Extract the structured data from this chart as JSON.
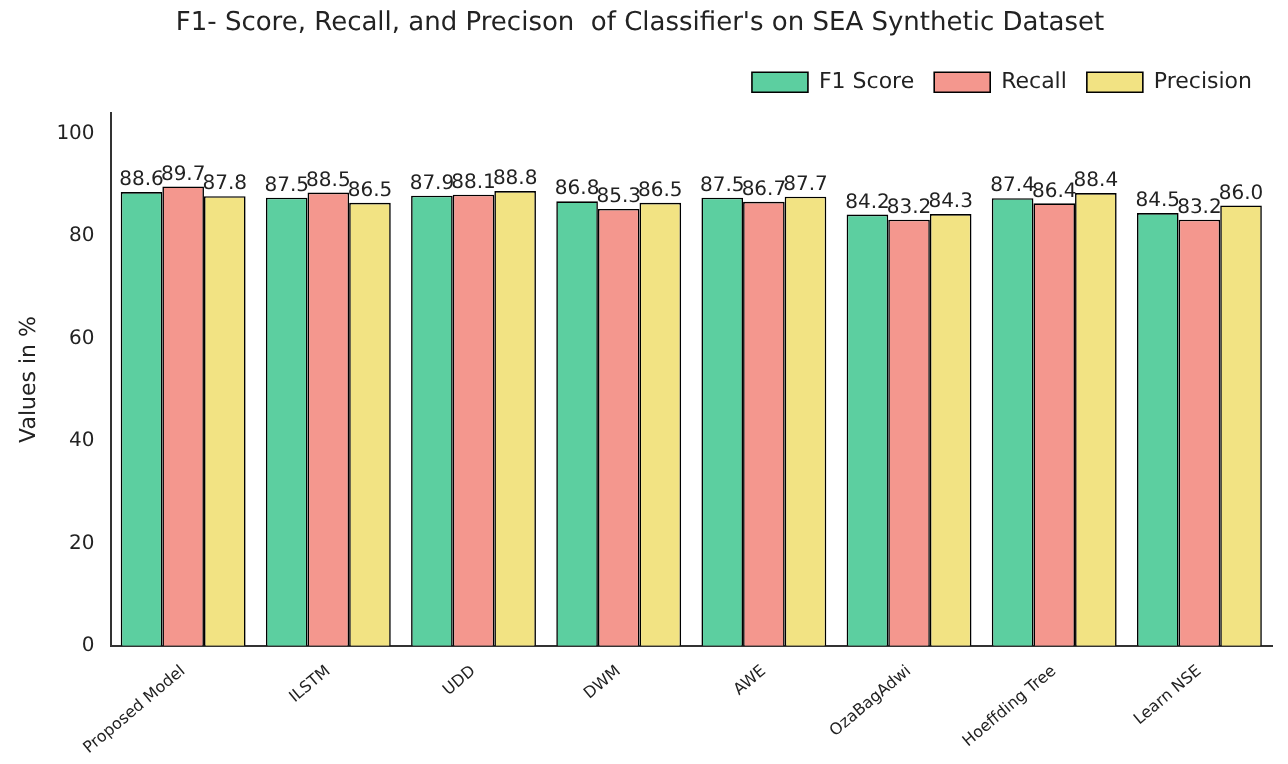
{
  "chart_data": {
    "type": "bar",
    "title": "F1- Score, Recall, and Precison  of Classifier's on SEA Synthetic Dataset",
    "ylabel": "Values in %",
    "categories": [
      "Proposed Model",
      "ILSTM",
      "UDD",
      "DWM",
      "AWE",
      "OzaBagAdwi",
      "Hoeffding Tree",
      "Learn NSE"
    ],
    "series": [
      {
        "name": "F1 Score",
        "color": "#5ccfa0",
        "values": [
          88.6,
          87.5,
          87.9,
          86.8,
          87.5,
          84.2,
          87.4,
          84.5
        ],
        "value_labels": [
          "88.6",
          "87.5",
          "87.9",
          "86.8",
          "87.5",
          "84.2",
          "87.4",
          "84.5"
        ]
      },
      {
        "name": "Recall",
        "color": "#f4978e",
        "values": [
          89.7,
          88.5,
          88.1,
          85.3,
          86.7,
          83.2,
          86.4,
          83.2
        ],
        "value_labels": [
          "89.7",
          "88.5",
          "88.1",
          "85.3",
          "86.7",
          "83.2",
          "86.4",
          "83.2"
        ]
      },
      {
        "name": "Precision",
        "color": "#f2e383",
        "values": [
          87.8,
          86.5,
          88.8,
          86.5,
          87.7,
          84.3,
          88.4,
          86.0
        ],
        "value_labels": [
          "87.8",
          "86.5",
          "88.8",
          "86.5",
          "87.7",
          "84.3",
          "88.4",
          "86.0"
        ]
      }
    ],
    "ylim": [
      0,
      104
    ],
    "yticks": [
      0,
      20,
      40,
      60,
      80,
      100
    ],
    "grid": false,
    "legend": "top right"
  }
}
